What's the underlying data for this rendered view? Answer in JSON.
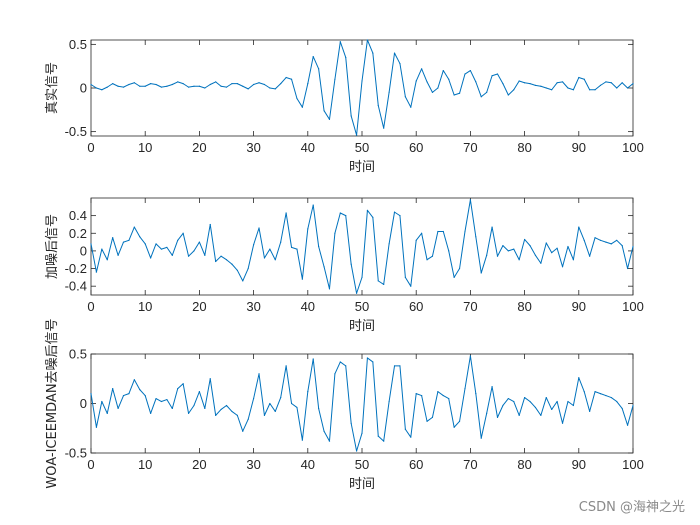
{
  "line_color": "#0072BD",
  "watermark": "CSDN @海神之光",
  "chart_data": [
    {
      "type": "line",
      "xlabel": "时间",
      "ylabel": "真实信号",
      "xlim": [
        0,
        100
      ],
      "ylim": [
        -0.55,
        0.55
      ],
      "xticks": [
        0,
        10,
        20,
        30,
        40,
        50,
        60,
        70,
        80,
        90,
        100
      ],
      "yticks": [
        -0.5,
        0,
        0.5
      ],
      "ytick_labels": [
        "-0.5",
        "0",
        "0.5"
      ],
      "series": [
        {
          "values": [
            0.04,
            0.0,
            -0.02,
            0.01,
            0.05,
            0.02,
            0.01,
            0.04,
            0.06,
            0.02,
            0.02,
            0.05,
            0.04,
            0.01,
            0.02,
            0.04,
            0.07,
            0.05,
            0.01,
            0.02,
            0.02,
            0.0,
            0.04,
            0.07,
            0.02,
            0.01,
            0.05,
            0.05,
            0.02,
            -0.01,
            0.04,
            0.06,
            0.04,
            0.0,
            -0.01,
            0.05,
            0.12,
            0.1,
            -0.12,
            -0.22,
            0.05,
            0.36,
            0.22,
            -0.26,
            -0.36,
            0.1,
            0.53,
            0.35,
            -0.32,
            -0.54,
            0.08,
            0.55,
            0.4,
            -0.2,
            -0.46,
            -0.05,
            0.4,
            0.28,
            -0.1,
            -0.22,
            0.08,
            0.22,
            0.07,
            -0.05,
            0.0,
            0.2,
            0.1,
            -0.08,
            -0.06,
            0.16,
            0.2,
            0.07,
            -0.1,
            -0.05,
            0.14,
            0.16,
            0.05,
            -0.08,
            -0.02,
            0.08,
            0.06,
            0.05,
            0.03,
            0.02,
            0.0,
            -0.02,
            0.06,
            0.07,
            0.0,
            -0.02,
            0.12,
            0.1,
            -0.02,
            -0.02,
            0.03,
            0.07,
            0.06,
            0.0,
            0.06,
            0.0,
            0.05
          ]
        }
      ]
    },
    {
      "type": "line",
      "xlabel": "时间",
      "ylabel": "加噪后信号",
      "xlim": [
        0,
        100
      ],
      "ylim": [
        -0.5,
        0.6
      ],
      "xticks": [
        0,
        10,
        20,
        30,
        40,
        50,
        60,
        70,
        80,
        90,
        100
      ],
      "yticks": [
        -0.4,
        -0.2,
        0,
        0.2,
        0.4
      ],
      "ytick_labels": [
        "-0.4",
        "-0.2",
        "0",
        "0.2",
        "0.4"
      ],
      "series": [
        {
          "values": [
            0.08,
            -0.24,
            0.02,
            -0.1,
            0.15,
            -0.05,
            0.1,
            0.12,
            0.27,
            0.16,
            0.08,
            -0.08,
            0.08,
            0.02,
            0.04,
            -0.05,
            0.12,
            0.2,
            -0.06,
            0.0,
            0.1,
            -0.05,
            0.3,
            -0.12,
            -0.06,
            -0.1,
            -0.15,
            -0.22,
            -0.34,
            -0.2,
            0.07,
            0.26,
            -0.08,
            0.02,
            -0.1,
            0.1,
            0.43,
            0.04,
            0.02,
            -0.32,
            0.25,
            0.52,
            0.05,
            -0.18,
            -0.43,
            0.2,
            0.43,
            0.4,
            -0.15,
            -0.48,
            -0.3,
            0.46,
            0.38,
            -0.34,
            -0.38,
            0.08,
            0.44,
            0.4,
            -0.3,
            -0.4,
            0.12,
            0.2,
            -0.1,
            -0.06,
            0.22,
            0.22,
            0.0,
            -0.3,
            -0.2,
            0.22,
            0.58,
            0.16,
            -0.25,
            -0.05,
            0.27,
            -0.06,
            0.06,
            0.0,
            0.02,
            -0.1,
            0.13,
            0.06,
            -0.05,
            -0.14,
            0.09,
            -0.02,
            0.03,
            -0.18,
            0.05,
            -0.1,
            0.27,
            0.12,
            -0.06,
            0.15,
            0.12,
            0.1,
            0.08,
            0.12,
            0.06,
            -0.2,
            0.05
          ]
        }
      ]
    },
    {
      "type": "line",
      "xlabel": "时间",
      "ylabel": "WOA-ICEEMDAN去噪后信号",
      "xlim": [
        0,
        100
      ],
      "ylim": [
        -0.5,
        0.5
      ],
      "xticks": [
        0,
        10,
        20,
        30,
        40,
        50,
        60,
        70,
        80,
        90,
        100
      ],
      "yticks": [
        -0.5,
        0,
        0.5
      ],
      "ytick_labels": [
        "-0.5",
        "0",
        "0.5"
      ],
      "series": [
        {
          "values": [
            0.1,
            -0.24,
            0.02,
            -0.1,
            0.15,
            -0.05,
            0.08,
            0.1,
            0.24,
            0.14,
            0.08,
            -0.1,
            0.05,
            0.02,
            0.04,
            -0.05,
            0.15,
            0.2,
            -0.1,
            -0.02,
            0.12,
            -0.05,
            0.25,
            -0.12,
            -0.06,
            -0.02,
            -0.08,
            -0.12,
            -0.28,
            -0.16,
            0.05,
            0.3,
            -0.12,
            0.0,
            -0.08,
            0.06,
            0.38,
            0.0,
            -0.04,
            -0.37,
            0.12,
            0.45,
            -0.05,
            -0.28,
            -0.38,
            0.3,
            0.42,
            0.38,
            -0.2,
            -0.48,
            -0.3,
            0.46,
            0.42,
            -0.33,
            -0.38,
            0.02,
            0.38,
            0.38,
            -0.26,
            -0.34,
            0.1,
            0.08,
            -0.18,
            -0.14,
            0.12,
            0.08,
            0.05,
            -0.24,
            -0.18,
            0.15,
            0.48,
            0.1,
            -0.35,
            -0.1,
            0.17,
            -0.14,
            -0.02,
            0.05,
            0.02,
            -0.12,
            0.06,
            0.02,
            -0.04,
            -0.12,
            0.06,
            -0.06,
            0.02,
            -0.2,
            0.02,
            -0.02,
            0.26,
            0.12,
            -0.08,
            0.12,
            0.1,
            0.08,
            0.06,
            0.02,
            -0.05,
            -0.22,
            -0.02
          ]
        }
      ]
    }
  ]
}
